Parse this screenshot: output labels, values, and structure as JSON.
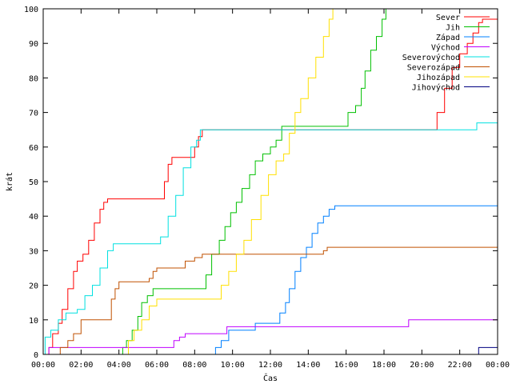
{
  "chart_data": {
    "type": "line",
    "title": "",
    "xlabel": "Čas",
    "ylabel": "krát",
    "xlim": [
      0,
      24
    ],
    "ylim": [
      0,
      100
    ],
    "x_ticks": [
      {
        "value": 0,
        "label": "00:00"
      },
      {
        "value": 2,
        "label": "02:00"
      },
      {
        "value": 4,
        "label": "04:00"
      },
      {
        "value": 6,
        "label": "06:00"
      },
      {
        "value": 8,
        "label": "08:00"
      },
      {
        "value": 10,
        "label": "10:00"
      },
      {
        "value": 12,
        "label": "12:00"
      },
      {
        "value": 14,
        "label": "14:00"
      },
      {
        "value": 16,
        "label": "16:00"
      },
      {
        "value": 18,
        "label": "18:00"
      },
      {
        "value": 20,
        "label": "20:00"
      },
      {
        "value": 22,
        "label": "22:00"
      },
      {
        "value": 24,
        "label": "00:00"
      }
    ],
    "y_ticks": [
      0,
      10,
      20,
      30,
      40,
      50,
      60,
      70,
      80,
      90,
      100
    ],
    "grid": false,
    "legend_position": "top-right",
    "series": [
      {
        "name": "Sever",
        "color": "#ff0000",
        "points": [
          [
            0,
            0
          ],
          [
            0.2,
            0
          ],
          [
            0.3,
            2
          ],
          [
            0.5,
            6
          ],
          [
            0.8,
            9
          ],
          [
            1.0,
            13
          ],
          [
            1.3,
            19
          ],
          [
            1.6,
            24
          ],
          [
            1.8,
            27
          ],
          [
            2.1,
            29
          ],
          [
            2.4,
            33
          ],
          [
            2.7,
            38
          ],
          [
            3.0,
            42
          ],
          [
            3.2,
            44
          ],
          [
            3.4,
            45
          ],
          [
            6.2,
            45
          ],
          [
            6.4,
            50
          ],
          [
            6.6,
            55
          ],
          [
            6.8,
            57
          ],
          [
            7.8,
            57
          ],
          [
            8.0,
            60
          ],
          [
            8.2,
            63
          ],
          [
            8.4,
            65
          ],
          [
            20.6,
            65
          ],
          [
            20.8,
            70
          ],
          [
            21.2,
            77
          ],
          [
            21.6,
            83
          ],
          [
            22.0,
            87
          ],
          [
            22.4,
            90
          ],
          [
            22.7,
            93
          ],
          [
            23.0,
            96
          ],
          [
            23.2,
            97
          ],
          [
            24,
            97
          ]
        ]
      },
      {
        "name": "Jih",
        "color": "#00c000",
        "points": [
          [
            0,
            0
          ],
          [
            4.0,
            0
          ],
          [
            4.2,
            2
          ],
          [
            4.4,
            4
          ],
          [
            4.7,
            7
          ],
          [
            5.0,
            11
          ],
          [
            5.2,
            15
          ],
          [
            5.5,
            17
          ],
          [
            5.8,
            19
          ],
          [
            8.4,
            19
          ],
          [
            8.6,
            23
          ],
          [
            8.9,
            29
          ],
          [
            9.3,
            33
          ],
          [
            9.6,
            37
          ],
          [
            9.9,
            41
          ],
          [
            10.2,
            44
          ],
          [
            10.5,
            48
          ],
          [
            10.9,
            52
          ],
          [
            11.2,
            56
          ],
          [
            11.6,
            58
          ],
          [
            12.0,
            60
          ],
          [
            12.3,
            62
          ],
          [
            12.6,
            66
          ],
          [
            15.8,
            66
          ],
          [
            16.1,
            70
          ],
          [
            16.5,
            72
          ],
          [
            16.8,
            77
          ],
          [
            17.0,
            82
          ],
          [
            17.3,
            88
          ],
          [
            17.6,
            92
          ],
          [
            17.9,
            97
          ],
          [
            18.1,
            100
          ],
          [
            24,
            100
          ]
        ]
      },
      {
        "name": "Západ",
        "color": "#0080ff",
        "points": [
          [
            0,
            0
          ],
          [
            9.0,
            0
          ],
          [
            9.1,
            2
          ],
          [
            9.4,
            4
          ],
          [
            9.8,
            7
          ],
          [
            10.8,
            7
          ],
          [
            11.2,
            9
          ],
          [
            12.2,
            9
          ],
          [
            12.5,
            12
          ],
          [
            12.8,
            15
          ],
          [
            13.0,
            19
          ],
          [
            13.3,
            24
          ],
          [
            13.6,
            28
          ],
          [
            13.9,
            31
          ],
          [
            14.2,
            35
          ],
          [
            14.5,
            38
          ],
          [
            14.8,
            40
          ],
          [
            15.1,
            42
          ],
          [
            15.4,
            43
          ],
          [
            24,
            43
          ]
        ]
      },
      {
        "name": "Východ",
        "color": "#c000ff",
        "points": [
          [
            0,
            0
          ],
          [
            0.2,
            0
          ],
          [
            0.3,
            2
          ],
          [
            6.6,
            2
          ],
          [
            6.9,
            4
          ],
          [
            7.2,
            5
          ],
          [
            7.5,
            6
          ],
          [
            9.5,
            6
          ],
          [
            9.7,
            8
          ],
          [
            19.2,
            8
          ],
          [
            19.3,
            10
          ],
          [
            24,
            10
          ]
        ]
      },
      {
        "name": "Severovýchod",
        "color": "#00e0e0",
        "points": [
          [
            0,
            0
          ],
          [
            0.1,
            5
          ],
          [
            0.4,
            7
          ],
          [
            0.8,
            10
          ],
          [
            1.2,
            12
          ],
          [
            1.8,
            13
          ],
          [
            2.2,
            17
          ],
          [
            2.6,
            20
          ],
          [
            3.0,
            25
          ],
          [
            3.4,
            30
          ],
          [
            3.7,
            32
          ],
          [
            5.8,
            32
          ],
          [
            6.2,
            34
          ],
          [
            6.6,
            40
          ],
          [
            7.0,
            46
          ],
          [
            7.4,
            54
          ],
          [
            7.8,
            60
          ],
          [
            8.1,
            62
          ],
          [
            8.3,
            65
          ],
          [
            22.8,
            65
          ],
          [
            22.9,
            67
          ],
          [
            24,
            67
          ]
        ]
      },
      {
        "name": "Severozápad",
        "color": "#c05000",
        "points": [
          [
            0,
            0
          ],
          [
            0.8,
            0
          ],
          [
            0.9,
            2
          ],
          [
            1.3,
            4
          ],
          [
            1.6,
            6
          ],
          [
            2.0,
            10
          ],
          [
            3.2,
            10
          ],
          [
            3.6,
            16
          ],
          [
            3.8,
            19
          ],
          [
            4.0,
            21
          ],
          [
            5.4,
            21
          ],
          [
            5.6,
            22
          ],
          [
            5.8,
            24
          ],
          [
            6.0,
            25
          ],
          [
            7.2,
            25
          ],
          [
            7.5,
            27
          ],
          [
            8.0,
            28
          ],
          [
            8.4,
            29
          ],
          [
            14.4,
            29
          ],
          [
            14.8,
            30
          ],
          [
            15.0,
            31
          ],
          [
            24,
            31
          ]
        ]
      },
      {
        "name": "Jihozápad",
        "color": "#ffe000",
        "points": [
          [
            0,
            0
          ],
          [
            4.3,
            0
          ],
          [
            4.5,
            4
          ],
          [
            4.8,
            7
          ],
          [
            5.2,
            10
          ],
          [
            5.6,
            14
          ],
          [
            6.0,
            16
          ],
          [
            9.2,
            16
          ],
          [
            9.4,
            20
          ],
          [
            9.8,
            24
          ],
          [
            10.2,
            29
          ],
          [
            10.6,
            33
          ],
          [
            11.0,
            39
          ],
          [
            11.5,
            46
          ],
          [
            11.9,
            52
          ],
          [
            12.3,
            56
          ],
          [
            12.7,
            58
          ],
          [
            13.0,
            64
          ],
          [
            13.3,
            70
          ],
          [
            13.6,
            74
          ],
          [
            14.0,
            80
          ],
          [
            14.4,
            86
          ],
          [
            14.8,
            92
          ],
          [
            15.1,
            97
          ],
          [
            15.3,
            100
          ],
          [
            24,
            100
          ]
        ]
      },
      {
        "name": "Jihovýchod",
        "color": "#000080",
        "points": [
          [
            0,
            0
          ],
          [
            22.9,
            0
          ],
          [
            23.0,
            2
          ],
          [
            24,
            2
          ]
        ]
      }
    ]
  }
}
